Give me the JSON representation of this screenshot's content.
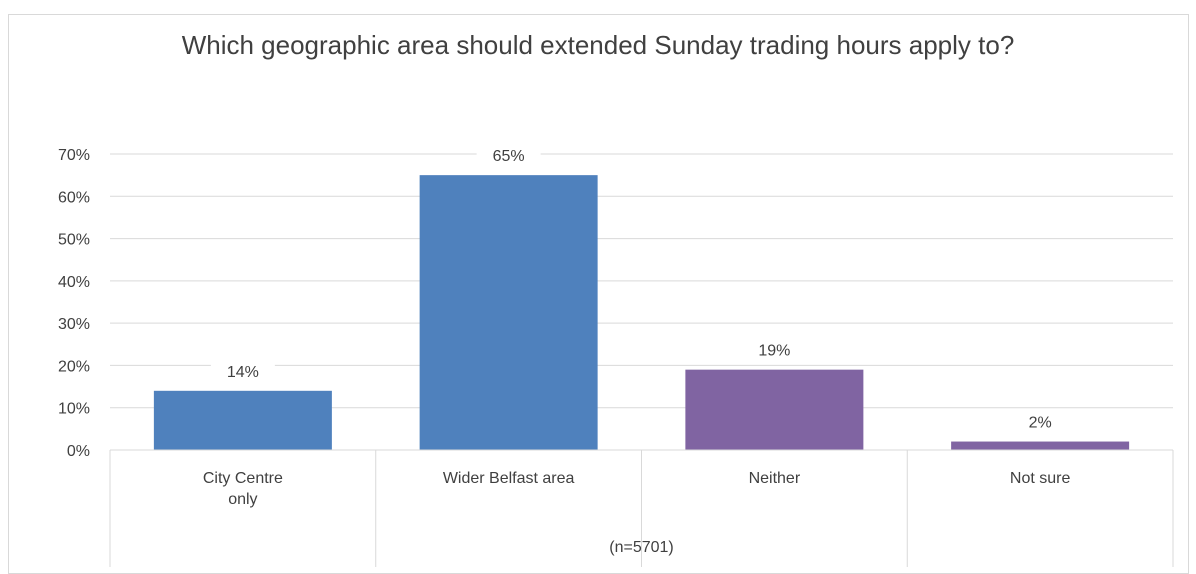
{
  "chart_data": {
    "type": "bar",
    "title": "Which geographic area should extended Sunday trading hours apply to?",
    "categories": [
      "City Centre\nonly",
      "Wider Belfast area",
      "Neither",
      "Not sure"
    ],
    "values": [
      14,
      65,
      19,
      2
    ],
    "data_labels": [
      "14%",
      "65%",
      "19%",
      "2%"
    ],
    "bar_colors": [
      "#4f81bd",
      "#4f81bd",
      "#8064a2",
      "#8064a2"
    ],
    "ylim": [
      0,
      70
    ],
    "y_ticks": [
      0,
      10,
      20,
      30,
      40,
      50,
      60,
      70
    ],
    "y_tick_labels": [
      "0%",
      "10%",
      "20%",
      "30%",
      "40%",
      "50%",
      "60%",
      "70%"
    ],
    "grid": true,
    "legend": "none",
    "note": "(n=5701)"
  }
}
